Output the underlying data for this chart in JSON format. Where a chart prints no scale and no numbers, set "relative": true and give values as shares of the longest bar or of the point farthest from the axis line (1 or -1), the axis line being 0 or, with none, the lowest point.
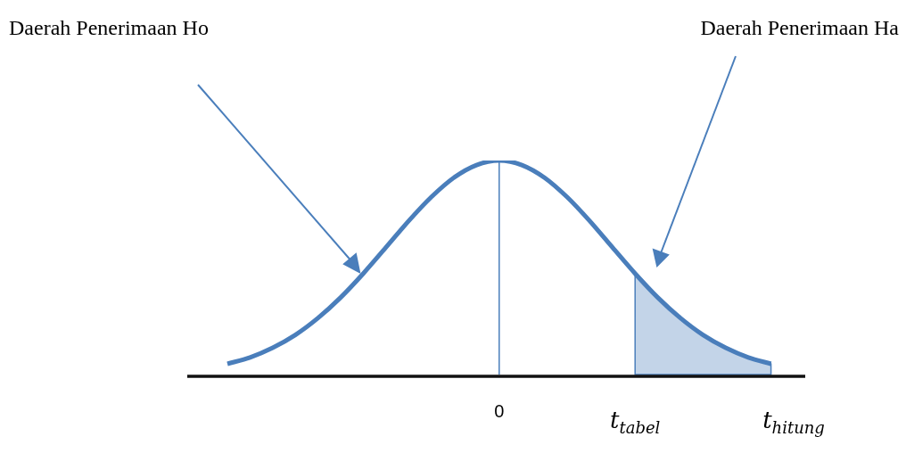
{
  "chart_data": {
    "type": "line",
    "relative": true,
    "categories": [
      null,
      null,
      null,
      null,
      null,
      null,
      null,
      null,
      null,
      null,
      null,
      null,
      "0",
      null,
      null,
      null,
      null,
      null,
      "t$_{tabel}$",
      null,
      null,
      null,
      null,
      null,
      null,
      "t$_{hitung}$"
    ],
    "series": [
      {
        "color": "#4a7ebb",
        "values": [
          0.05,
          0.08,
          0.125,
          0.185,
          0.264,
          0.36,
          0.472,
          0.594,
          0.717,
          0.829,
          0.92,
          0.979,
          1,
          0.979,
          0.92,
          0.829,
          0.717,
          0.594,
          0.472,
          0.36,
          0.264,
          0.185,
          0.125,
          0.08,
          0.05,
          null
        ]
      },
      {
        "type": "area",
        "color": "#4a7ebb",
        "values": [
          null,
          null,
          null,
          null,
          null,
          null,
          null,
          null,
          null,
          null,
          null,
          null,
          null,
          null,
          null,
          null,
          null,
          null,
          0.472,
          0.36,
          0.264,
          0.185,
          0.125,
          0.08,
          0.05,
          null
        ]
      }
    ],
    "ref_lines": [
      {
        "axis": "x",
        "value": "0",
        "color": "#4a7ebb"
      }
    ],
    "annotations": [
      "Daerah Penerimaan Ho",
      "Daerah Penerimaan Ha"
    ]
  }
}
